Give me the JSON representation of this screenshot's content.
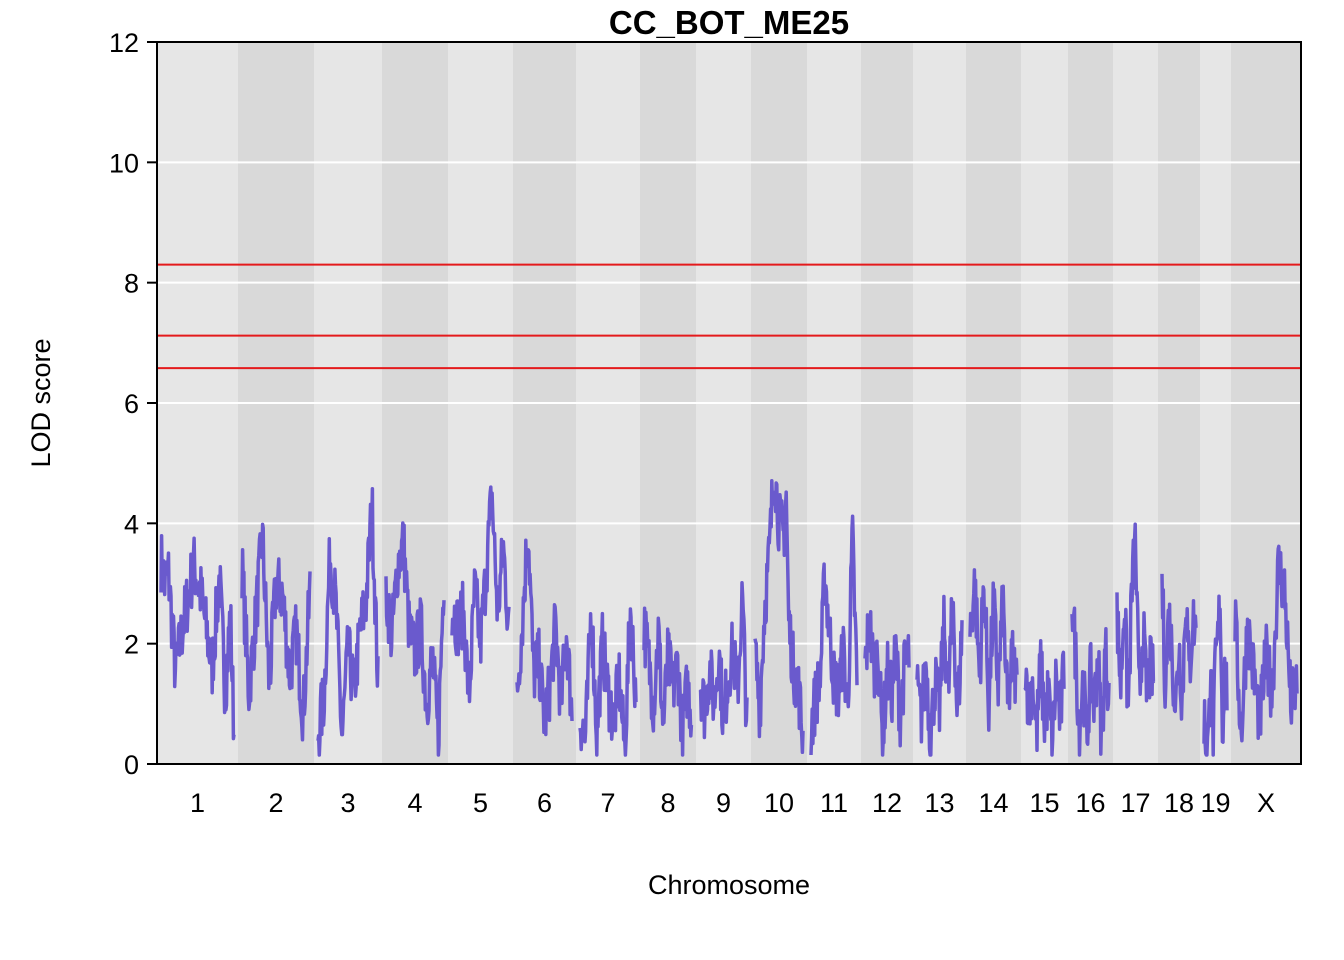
{
  "chart_data": {
    "type": "line",
    "title": "CC_BOT_ME25",
    "xlabel": "Chromosome",
    "ylabel": "LOD score",
    "ylim": [
      0,
      12
    ],
    "yticks": [
      0,
      2,
      4,
      6,
      8,
      10,
      12
    ],
    "grid": true,
    "threshold_lines": [
      8.3,
      7.12,
      6.58
    ],
    "colors": {
      "line": "#6a5acd",
      "threshold": "#e41a1c",
      "band_light": "#e6e6e6",
      "band_dark": "#d9d9d9",
      "grid": "#ffffff"
    },
    "chromosomes": [
      {
        "label": "1",
        "peaks": [
          [
            0.0,
            3.4
          ],
          [
            0.05,
            3.0
          ],
          [
            0.1,
            3.2
          ],
          [
            0.2,
            1.5
          ],
          [
            0.3,
            2.3
          ],
          [
            0.45,
            3.3
          ],
          [
            0.55,
            2.8
          ],
          [
            0.6,
            2.4
          ],
          [
            0.7,
            1.6
          ],
          [
            0.8,
            3.1
          ],
          [
            0.88,
            1.2
          ],
          [
            0.95,
            2.5
          ],
          [
            1.0,
            0.5
          ]
        ]
      },
      {
        "label": "2",
        "peaks": [
          [
            0.0,
            3.3
          ],
          [
            0.1,
            1.2
          ],
          [
            0.2,
            2.4
          ],
          [
            0.3,
            3.8
          ],
          [
            0.4,
            1.3
          ],
          [
            0.5,
            3.0
          ],
          [
            0.6,
            2.8
          ],
          [
            0.7,
            1.5
          ],
          [
            0.8,
            2.2
          ],
          [
            0.9,
            0.8
          ],
          [
            1.0,
            2.9
          ]
        ]
      },
      {
        "label": "3",
        "peaks": [
          [
            0.0,
            0.5
          ],
          [
            0.1,
            1.1
          ],
          [
            0.2,
            3.5
          ],
          [
            0.3,
            2.6
          ],
          [
            0.4,
            0.4
          ],
          [
            0.5,
            1.9
          ],
          [
            0.6,
            1.2
          ],
          [
            0.7,
            2.2
          ],
          [
            0.8,
            2.7
          ],
          [
            0.9,
            4.3
          ],
          [
            1.0,
            1.3
          ]
        ]
      },
      {
        "label": "4",
        "peaks": [
          [
            0.0,
            2.9
          ],
          [
            0.1,
            2.1
          ],
          [
            0.2,
            3.3
          ],
          [
            0.3,
            3.7
          ],
          [
            0.4,
            2.2
          ],
          [
            0.5,
            1.8
          ],
          [
            0.6,
            2.3
          ],
          [
            0.7,
            1.0
          ],
          [
            0.8,
            1.8
          ],
          [
            0.9,
            0.4
          ],
          [
            1.0,
            3.2
          ]
        ]
      },
      {
        "label": "5",
        "peaks": [
          [
            0.0,
            2.6
          ],
          [
            0.1,
            2.3
          ],
          [
            0.2,
            2.5
          ],
          [
            0.3,
            1.1
          ],
          [
            0.4,
            2.9
          ],
          [
            0.5,
            2.0
          ],
          [
            0.6,
            3.2
          ],
          [
            0.7,
            4.5
          ],
          [
            0.8,
            2.5
          ],
          [
            0.9,
            3.6
          ],
          [
            1.0,
            2.2
          ]
        ]
      },
      {
        "label": "6",
        "peaks": [
          [
            0.0,
            1.2
          ],
          [
            0.1,
            2.4
          ],
          [
            0.2,
            4.0
          ],
          [
            0.3,
            1.5
          ],
          [
            0.4,
            1.7
          ],
          [
            0.5,
            0.7
          ],
          [
            0.6,
            1.3
          ],
          [
            0.7,
            2.3
          ],
          [
            0.8,
            1.0
          ],
          [
            0.9,
            2.2
          ],
          [
            1.0,
            0.8
          ]
        ]
      },
      {
        "label": "7",
        "peaks": [
          [
            0.0,
            0.8
          ],
          [
            0.1,
            0.4
          ],
          [
            0.2,
            2.6
          ],
          [
            0.3,
            0.5
          ],
          [
            0.4,
            2.0
          ],
          [
            0.5,
            1.2
          ],
          [
            0.6,
            0.7
          ],
          [
            0.7,
            1.4
          ],
          [
            0.8,
            0.2
          ],
          [
            0.9,
            2.6
          ],
          [
            1.0,
            1.1
          ]
        ]
      },
      {
        "label": "8",
        "peaks": [
          [
            0.0,
            2.3
          ],
          [
            0.1,
            1.7
          ],
          [
            0.2,
            1.0
          ],
          [
            0.3,
            2.2
          ],
          [
            0.4,
            0.6
          ],
          [
            0.5,
            1.8
          ],
          [
            0.6,
            1.2
          ],
          [
            0.7,
            1.7
          ],
          [
            0.8,
            0.5
          ],
          [
            0.9,
            1.3
          ],
          [
            1.0,
            0.8
          ]
        ]
      },
      {
        "label": "9",
        "peaks": [
          [
            0.0,
            1.4
          ],
          [
            0.1,
            0.9
          ],
          [
            0.2,
            1.6
          ],
          [
            0.3,
            1.0
          ],
          [
            0.4,
            1.9
          ],
          [
            0.5,
            0.7
          ],
          [
            0.6,
            1.5
          ],
          [
            0.7,
            1.9
          ],
          [
            0.8,
            1.2
          ],
          [
            0.9,
            2.8
          ],
          [
            1.0,
            0.6
          ]
        ]
      },
      {
        "label": "10",
        "peaks": [
          [
            0.0,
            1.9
          ],
          [
            0.1,
            0.9
          ],
          [
            0.2,
            2.6
          ],
          [
            0.3,
            3.5
          ],
          [
            0.4,
            5.0
          ],
          [
            0.5,
            4.0
          ],
          [
            0.6,
            3.8
          ],
          [
            0.65,
            4.5
          ],
          [
            0.7,
            2.4
          ],
          [
            0.8,
            1.6
          ],
          [
            0.9,
            1.3
          ],
          [
            1.0,
            0.4
          ]
        ]
      },
      {
        "label": "11",
        "peaks": [
          [
            0.0,
            0.6
          ],
          [
            0.1,
            1.1
          ],
          [
            0.2,
            1.4
          ],
          [
            0.3,
            3.2
          ],
          [
            0.4,
            2.2
          ],
          [
            0.5,
            1.4
          ],
          [
            0.6,
            1.2
          ],
          [
            0.7,
            1.9
          ],
          [
            0.8,
            0.9
          ],
          [
            0.9,
            3.8
          ],
          [
            1.0,
            1.3
          ]
        ]
      },
      {
        "label": "12",
        "peaks": [
          [
            0.0,
            1.6
          ],
          [
            0.1,
            2.4
          ],
          [
            0.2,
            1.5
          ],
          [
            0.3,
            1.9
          ],
          [
            0.4,
            0.3
          ],
          [
            0.5,
            1.6
          ],
          [
            0.6,
            1.1
          ],
          [
            0.7,
            1.9
          ],
          [
            0.8,
            0.8
          ],
          [
            0.9,
            1.6
          ],
          [
            1.0,
            1.8
          ]
        ]
      },
      {
        "label": "13",
        "peaks": [
          [
            0.0,
            1.2
          ],
          [
            0.1,
            0.8
          ],
          [
            0.2,
            1.7
          ],
          [
            0.3,
            0.4
          ],
          [
            0.4,
            1.4
          ],
          [
            0.5,
            0.9
          ],
          [
            0.6,
            2.3
          ],
          [
            0.7,
            1.2
          ],
          [
            0.8,
            2.8
          ],
          [
            0.9,
            0.7
          ],
          [
            1.0,
            2.3
          ]
        ]
      },
      {
        "label": "14",
        "peaks": [
          [
            0.0,
            2.2
          ],
          [
            0.1,
            3.0
          ],
          [
            0.2,
            1.5
          ],
          [
            0.3,
            3.0
          ],
          [
            0.4,
            1.0
          ],
          [
            0.5,
            2.7
          ],
          [
            0.6,
            1.3
          ],
          [
            0.7,
            2.7
          ],
          [
            0.8,
            0.9
          ],
          [
            0.9,
            1.8
          ],
          [
            1.0,
            1.3
          ]
        ]
      },
      {
        "label": "15",
        "peaks": [
          [
            0.0,
            1.8
          ],
          [
            0.1,
            0.9
          ],
          [
            0.2,
            1.4
          ],
          [
            0.3,
            0.5
          ],
          [
            0.4,
            1.7
          ],
          [
            0.5,
            0.7
          ],
          [
            0.6,
            1.2
          ],
          [
            0.7,
            0.3
          ],
          [
            0.8,
            1.5
          ],
          [
            0.9,
            0.7
          ],
          [
            1.0,
            1.6
          ]
        ]
      },
      {
        "label": "16",
        "peaks": [
          [
            0.0,
            2.8
          ],
          [
            0.1,
            1.8
          ],
          [
            0.2,
            0.6
          ],
          [
            0.3,
            1.4
          ],
          [
            0.4,
            0.4
          ],
          [
            0.5,
            1.5
          ],
          [
            0.6,
            1.0
          ],
          [
            0.7,
            1.8
          ],
          [
            0.8,
            0.4
          ],
          [
            0.9,
            1.9
          ],
          [
            1.0,
            1.2
          ]
        ]
      },
      {
        "label": "17",
        "peaks": [
          [
            0.0,
            2.5
          ],
          [
            0.1,
            1.3
          ],
          [
            0.2,
            2.8
          ],
          [
            0.3,
            0.8
          ],
          [
            0.4,
            2.9
          ],
          [
            0.5,
            3.7
          ],
          [
            0.6,
            1.0
          ],
          [
            0.7,
            2.3
          ],
          [
            0.8,
            1.2
          ],
          [
            0.9,
            1.6
          ],
          [
            1.0,
            1.4
          ]
        ]
      },
      {
        "label": "18",
        "peaks": [
          [
            0.0,
            3.0
          ],
          [
            0.1,
            1.3
          ],
          [
            0.2,
            2.5
          ],
          [
            0.3,
            1.8
          ],
          [
            0.4,
            0.9
          ],
          [
            0.5,
            2.0
          ],
          [
            0.6,
            1.0
          ],
          [
            0.7,
            2.9
          ],
          [
            0.8,
            1.4
          ],
          [
            0.9,
            2.4
          ],
          [
            1.0,
            2.2
          ]
        ]
      },
      {
        "label": "19",
        "peaks": [
          [
            0.0,
            0.8
          ],
          [
            0.1,
            0.3
          ],
          [
            0.2,
            0.4
          ],
          [
            0.3,
            1.9
          ],
          [
            0.4,
            0.3
          ],
          [
            0.5,
            1.7
          ],
          [
            0.6,
            2.0
          ],
          [
            0.7,
            2.8
          ],
          [
            0.8,
            0.6
          ],
          [
            0.9,
            1.5
          ],
          [
            1.0,
            1.2
          ]
        ]
      },
      {
        "label": "X",
        "peaks": [
          [
            0.0,
            2.4
          ],
          [
            0.1,
            0.5
          ],
          [
            0.2,
            2.3
          ],
          [
            0.3,
            1.5
          ],
          [
            0.4,
            0.7
          ],
          [
            0.5,
            1.8
          ],
          [
            0.6,
            1.2
          ],
          [
            0.7,
            3.3
          ],
          [
            0.8,
            2.9
          ],
          [
            0.9,
            1.0
          ],
          [
            1.0,
            1.3
          ]
        ]
      }
    ]
  }
}
